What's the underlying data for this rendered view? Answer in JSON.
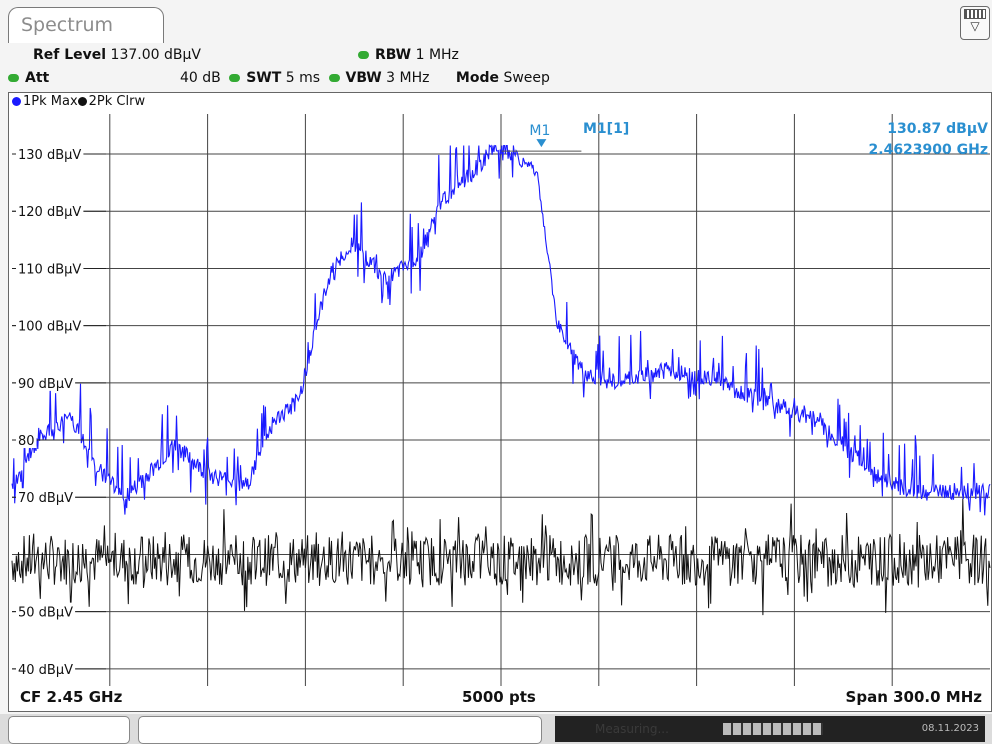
{
  "tab": {
    "title": "Spectrum"
  },
  "setup": {
    "ref_level_label": "Ref Level",
    "ref_level_value": "137.00 dBµV",
    "att_label": "Att",
    "att_value": "40 dB",
    "swt_label": "SWT",
    "swt_value": "5 ms",
    "rbw_label": "RBW",
    "rbw_value": "1 MHz",
    "vbw_label": "VBW",
    "vbw_value": "3 MHz",
    "mode_label": "Mode",
    "mode_value": "Sweep"
  },
  "traces": [
    {
      "label": "1Pk Max",
      "color": "#1a1aff"
    },
    {
      "label": "2Pk Clrw",
      "color": "#111111"
    }
  ],
  "marker": {
    "tag": "M1",
    "name": "M1[1]",
    "level": "130.87 dBµV",
    "freq": "2.4623900 GHz",
    "color": "#2a8fd0"
  },
  "footer": {
    "center": "CF 2.45 GHz",
    "points": "5000 pts",
    "span": "Span 300.0 MHz"
  },
  "statusbar": {
    "status": "Measuring...",
    "date": "08.11.2023"
  },
  "chart_data": {
    "type": "line",
    "xlabel": "",
    "ylabel": "",
    "xlim": [
      2300,
      2600
    ],
    "ylim": [
      37,
      137
    ],
    "yticks": [
      130,
      120,
      110,
      100,
      90,
      80,
      70,
      50,
      40
    ],
    "ytick_labels": [
      "130 dBµV",
      "120 dBµV",
      "110 dBµV",
      "100 dBµV",
      "90 dBµV",
      "80",
      "70 dBµV",
      "50 dBµV",
      "40 dBµV"
    ],
    "grid": true,
    "series": [
      {
        "name": "1Pk Max",
        "color": "#1a1aff",
        "x": [
          2300,
          2308,
          2318,
          2325,
          2335,
          2350,
          2360,
          2372,
          2380,
          2388,
          2392,
          2398,
          2405,
          2415,
          2425,
          2432,
          2440,
          2448,
          2455,
          2461,
          2465,
          2467,
          2470,
          2475,
          2485,
          2500,
          2515,
          2525,
          2535,
          2545,
          2555,
          2565,
          2575,
          2585,
          2600
        ],
        "values": [
          71,
          80,
          84,
          76,
          70,
          79,
          74,
          72,
          83,
          87,
          97,
          110,
          114,
          108,
          112,
          122,
          126,
          131,
          129,
          127,
          110,
          101,
          97,
          92,
          90,
          92,
          91,
          88,
          86,
          84,
          79,
          74,
          71,
          71,
          71
        ]
      },
      {
        "name": "2Pk Clrw",
        "color": "#111111",
        "x": [
          2300,
          2600
        ],
        "values": [
          59,
          59
        ]
      }
    ],
    "marker": {
      "x": 2462.39,
      "y": 130.87
    }
  }
}
